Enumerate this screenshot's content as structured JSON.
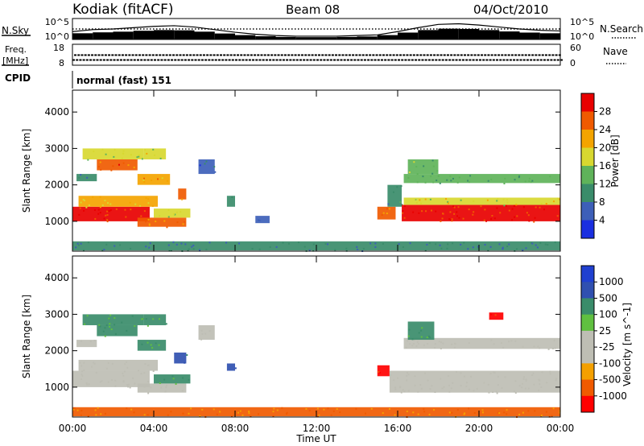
{
  "header": {
    "station": "Kodiak (fitACF)",
    "beam": "Beam 08",
    "date": "04/Oct/2010"
  },
  "colors": {
    "power_scale": [
      "#1a2fe0",
      "#3d5fb8",
      "#3a8c6a",
      "#5fb35a",
      "#d8d830",
      "#f4a400",
      "#f05a00",
      "#e80000"
    ],
    "velocity_scale": [
      "#ff0000",
      "#f05a00",
      "#f4a000",
      "#bebeb4",
      "#bebeb4",
      "#60c040",
      "#3a8c6a",
      "#3050b0",
      "#2040d0"
    ],
    "trace": "#000000"
  },
  "chart_data": [
    {
      "type": "line",
      "title": "",
      "labels": {
        "left": "N.Sky",
        "right": "N.Search"
      },
      "y_ticks_left": [
        "10^5",
        "10^0"
      ],
      "y_ticks_right": [
        "10^5",
        "10^0"
      ],
      "xlim": [
        0,
        24
      ],
      "series": [
        {
          "values": [
            1.2,
            1.5,
            1.6,
            1.8,
            2.0,
            2.1,
            1.9,
            1.5,
            1.1,
            0.8,
            0.6,
            0.5,
            0.5,
            0.5,
            0.6,
            0.7,
            1.2,
            1.8,
            2.3,
            2.4,
            2.2,
            1.9,
            1.6,
            1.4,
            1.3
          ]
        },
        {
          "values": [
            1.6,
            1.6,
            1.6,
            1.6,
            1.6,
            1.6,
            1.6,
            1.6,
            1.6,
            1.6,
            1.6,
            1.6,
            1.6,
            1.6,
            1.6,
            1.6,
            1.6,
            1.6,
            1.6,
            1.6,
            1.6,
            1.6,
            1.6,
            1.6,
            1.6
          ]
        }
      ]
    },
    {
      "type": "line",
      "title": "",
      "labels": {
        "left_top": "Freq.",
        "left_bottom": "[MHz]",
        "right": "Nave"
      },
      "y_ticks_left": [
        "18",
        "8"
      ],
      "y_ticks_right": [
        "60",
        "0"
      ],
      "xlim": [
        0,
        24
      ],
      "series": [
        {
          "values": [
            10.5,
            10.5,
            10.5,
            10.5,
            10.5,
            10.5,
            10.5,
            10.5,
            10.5,
            10.5,
            10.5,
            10.5,
            10.5,
            10.5,
            10.5,
            10.5,
            10.5,
            10.5,
            10.5,
            10.5,
            10.5,
            10.5,
            10.5,
            10.5,
            10.5
          ]
        },
        {
          "values": [
            29,
            29,
            29,
            29,
            29,
            29,
            29,
            29,
            29,
            29,
            29,
            29,
            29,
            29,
            29,
            29,
            29,
            29,
            29,
            29,
            29,
            29,
            29,
            29,
            29
          ]
        }
      ]
    },
    {
      "type": "table",
      "title": "",
      "label": "CPID",
      "value": "normal (fast) 151"
    },
    {
      "type": "heatmap",
      "title": "",
      "ylabel": "Slant Range [km]",
      "xlabel": "",
      "ylim": [
        180,
        4600
      ],
      "xlim": [
        0,
        24
      ],
      "y_ticks": [
        "4000",
        "3000",
        "2000",
        "1000"
      ],
      "colorbar": {
        "label": "Power [dB]",
        "ticks": [
          "28",
          "24",
          "20",
          "16",
          "12",
          "8",
          "4"
        ],
        "range": [
          0,
          32
        ]
      },
      "regions": [
        {
          "t0": 0.0,
          "t1": 3.8,
          "r0": 1000,
          "r1": 1400,
          "v": 28
        },
        {
          "t0": 0.3,
          "t1": 4.2,
          "r0": 1400,
          "r1": 1700,
          "v": 20
        },
        {
          "t0": 0.2,
          "t1": 1.2,
          "r0": 2100,
          "r1": 2300,
          "v": 10
        },
        {
          "t0": 1.2,
          "t1": 3.2,
          "r0": 2400,
          "r1": 2700,
          "v": 26
        },
        {
          "t0": 0.5,
          "t1": 3.5,
          "r0": 2700,
          "r1": 3000,
          "v": 16
        },
        {
          "t0": 3.2,
          "t1": 4.8,
          "r0": 2000,
          "r1": 2300,
          "v": 22
        },
        {
          "t0": 3.5,
          "t1": 4.6,
          "r0": 2700,
          "r1": 3000,
          "v": 18
        },
        {
          "t0": 3.2,
          "t1": 5.6,
          "r0": 850,
          "r1": 1100,
          "v": 24
        },
        {
          "t0": 4.0,
          "t1": 5.8,
          "r0": 1100,
          "r1": 1350,
          "v": 16
        },
        {
          "t0": 5.2,
          "t1": 5.6,
          "r0": 1600,
          "r1": 1900,
          "v": 24
        },
        {
          "t0": 6.2,
          "t1": 7.0,
          "r0": 2300,
          "r1": 2700,
          "v": 6
        },
        {
          "t0": 7.6,
          "t1": 8.0,
          "r0": 1400,
          "r1": 1700,
          "v": 10
        },
        {
          "t0": 9.0,
          "t1": 9.7,
          "r0": 950,
          "r1": 1150,
          "v": 6
        },
        {
          "t0": 15.0,
          "t1": 15.9,
          "r0": 1050,
          "r1": 1400,
          "v": 24
        },
        {
          "t0": 15.5,
          "t1": 16.2,
          "r0": 1400,
          "r1": 2000,
          "v": 10
        },
        {
          "t0": 16.2,
          "t1": 24.0,
          "r0": 1000,
          "r1": 1450,
          "v": 28
        },
        {
          "t0": 16.3,
          "t1": 24.0,
          "r0": 1450,
          "r1": 1650,
          "v": 18
        },
        {
          "t0": 16.3,
          "t1": 24.0,
          "r0": 2050,
          "r1": 2300,
          "v": 12
        },
        {
          "t0": 16.5,
          "t1": 18.0,
          "r0": 2300,
          "r1": 2700,
          "v": 14
        },
        {
          "t0": 0.0,
          "t1": 24.0,
          "r0": 200,
          "r1": 450,
          "v": 8
        }
      ]
    },
    {
      "type": "heatmap",
      "title": "",
      "ylabel": "Slant Range [km]",
      "xlabel": "Time UT",
      "ylim": [
        180,
        4600
      ],
      "xlim": [
        0,
        24
      ],
      "y_ticks": [
        "4000",
        "3000",
        "2000",
        "1000"
      ],
      "x_ticks": [
        "00:00",
        "04:00",
        "08:00",
        "12:00",
        "16:00",
        "20:00",
        "00:00"
      ],
      "colorbar": {
        "label": "Velocity [m s^-1]",
        "ticks": [
          "1000",
          "500",
          "100",
          "25",
          "-25",
          "-100",
          "-500",
          "-1000"
        ]
      },
      "regions": [
        {
          "t0": 0.0,
          "t1": 3.8,
          "r0": 1000,
          "r1": 1450,
          "v": 0
        },
        {
          "t0": 0.3,
          "t1": 4.2,
          "r0": 1450,
          "r1": 1750,
          "v": 0
        },
        {
          "t0": 0.2,
          "t1": 1.2,
          "r0": 2100,
          "r1": 2300,
          "v": 0
        },
        {
          "t0": 1.2,
          "t1": 3.2,
          "r0": 2400,
          "r1": 2700,
          "v": 100
        },
        {
          "t0": 0.5,
          "t1": 3.5,
          "r0": 2700,
          "r1": 3000,
          "v": 100
        },
        {
          "t0": 3.2,
          "t1": 4.6,
          "r0": 2000,
          "r1": 2300,
          "v": 100
        },
        {
          "t0": 3.5,
          "t1": 4.6,
          "r0": 2700,
          "r1": 3000,
          "v": 100
        },
        {
          "t0": 3.2,
          "t1": 5.6,
          "r0": 850,
          "r1": 1100,
          "v": 0
        },
        {
          "t0": 4.0,
          "t1": 5.8,
          "r0": 1100,
          "r1": 1350,
          "v": 100
        },
        {
          "t0": 5.0,
          "t1": 5.6,
          "r0": 1650,
          "r1": 1950,
          "v": 500
        },
        {
          "t0": 6.2,
          "t1": 7.0,
          "r0": 2300,
          "r1": 2700,
          "v": 0
        },
        {
          "t0": 7.6,
          "t1": 8.0,
          "r0": 1450,
          "r1": 1650,
          "v": 500
        },
        {
          "t0": 15.0,
          "t1": 15.6,
          "r0": 1300,
          "r1": 1600,
          "v": -500
        },
        {
          "t0": 15.6,
          "t1": 24.0,
          "r0": 850,
          "r1": 1450,
          "v": 0
        },
        {
          "t0": 16.3,
          "t1": 24.0,
          "r0": 2050,
          "r1": 2350,
          "v": 0
        },
        {
          "t0": 16.5,
          "t1": 17.8,
          "r0": 2300,
          "r1": 2800,
          "v": 100
        },
        {
          "t0": 20.5,
          "t1": 21.2,
          "r0": 2850,
          "r1": 3050,
          "v": -500
        },
        {
          "t0": 0.0,
          "t1": 24.0,
          "r0": 200,
          "r1": 450,
          "v": -100
        }
      ]
    }
  ]
}
